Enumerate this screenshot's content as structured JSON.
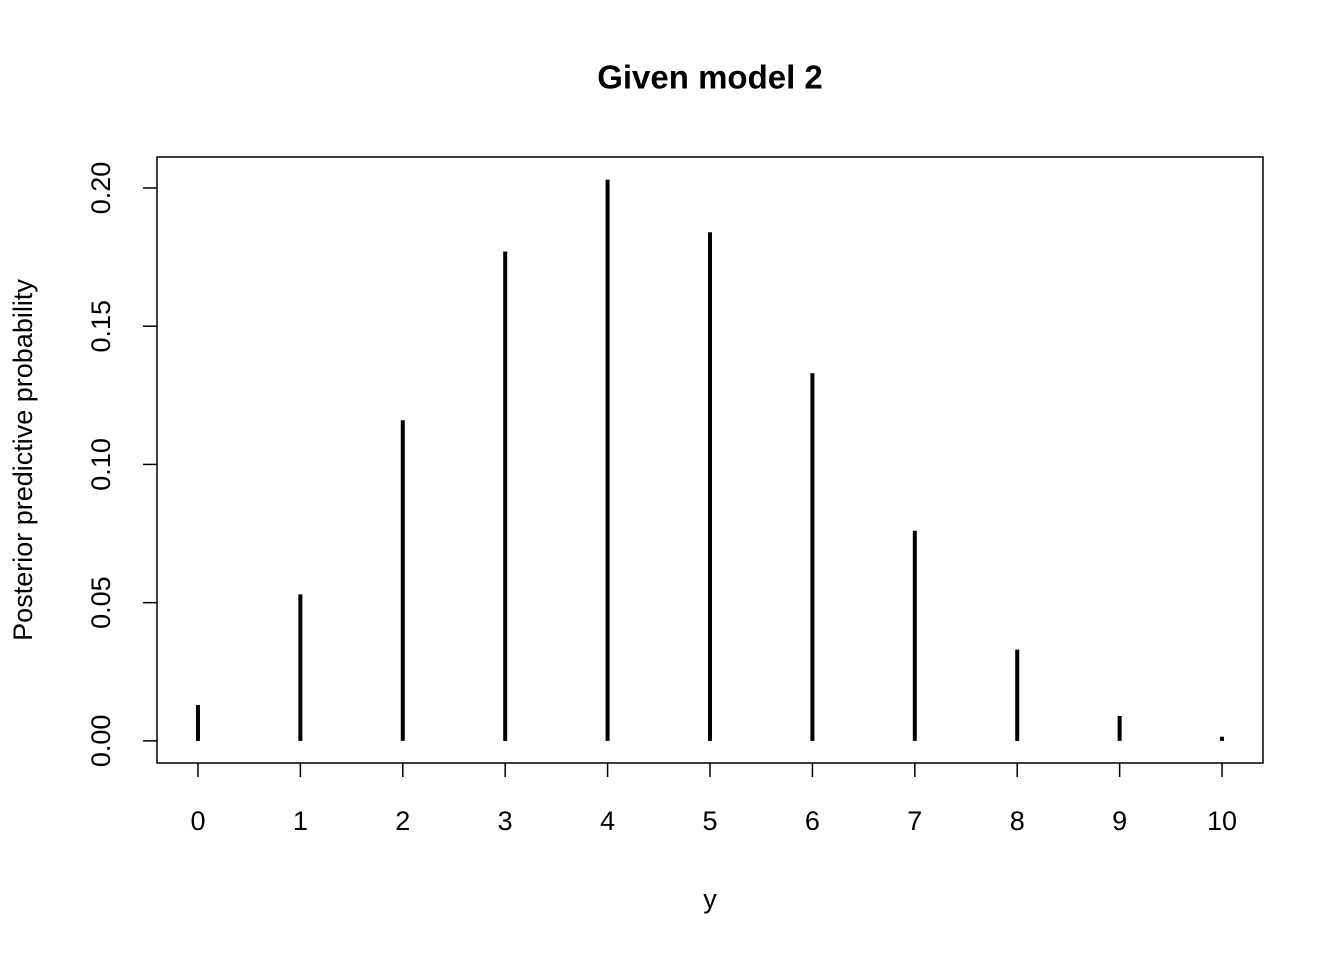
{
  "chart_data": {
    "type": "stem",
    "title": "Given model 2",
    "x_label": "y",
    "y_label": "Posterior predictive probability",
    "x": [
      0,
      1,
      2,
      3,
      4,
      5,
      6,
      7,
      8,
      9,
      10
    ],
    "values": [
      0.013,
      0.053,
      0.116,
      0.177,
      0.203,
      0.184,
      0.133,
      0.076,
      0.033,
      0.009,
      0.0015
    ],
    "color": "#000000",
    "xlim": [
      -0.4,
      10.4
    ],
    "xticks": [
      0,
      1,
      2,
      3,
      4,
      5,
      6,
      7,
      8,
      9,
      10
    ],
    "ylim": [
      -0.008,
      0.2112
    ],
    "yticks": [
      {
        "value": 0,
        "label": "0.00"
      },
      {
        "value": 0.05,
        "label": "0.05"
      },
      {
        "value": 0.1,
        "label": "0.10"
      },
      {
        "value": 0.15,
        "label": "0.15"
      },
      {
        "value": 0.2,
        "label": "0.20"
      }
    ]
  }
}
